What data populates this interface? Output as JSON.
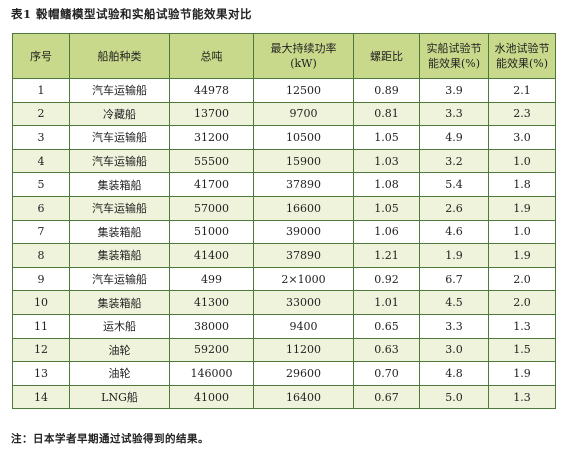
{
  "caption": "表1 毂帽鳍模型试验和实船试验节能效果对比",
  "columns": [
    "序号",
    "船舶种类",
    "总吨",
    "最大持续功率(kW)",
    "螺距比",
    "实船试验节能效果(%)",
    "水池试验节能效果(%)"
  ],
  "rows": [
    [
      "1",
      "汽车运输船",
      "44978",
      "12500",
      "0.89",
      "3.9",
      "2.1"
    ],
    [
      "2",
      "冷藏船",
      "13700",
      "9700",
      "0.81",
      "3.3",
      "2.3"
    ],
    [
      "3",
      "汽车运输船",
      "31200",
      "10500",
      "1.05",
      "4.9",
      "3.0"
    ],
    [
      "4",
      "汽车运输船",
      "55500",
      "15900",
      "1.03",
      "3.2",
      "1.0"
    ],
    [
      "5",
      "集装箱船",
      "41700",
      "37890",
      "1.08",
      "5.4",
      "1.8"
    ],
    [
      "6",
      "汽车运输船",
      "57000",
      "16600",
      "1.05",
      "2.6",
      "1.9"
    ],
    [
      "7",
      "集装箱船",
      "51000",
      "39000",
      "1.06",
      "4.6",
      "1.0"
    ],
    [
      "8",
      "集装箱船",
      "41400",
      "37890",
      "1.21",
      "1.9",
      "1.9"
    ],
    [
      "9",
      "汽车运输船",
      "499",
      "2×1000",
      "0.92",
      "6.7",
      "2.0"
    ],
    [
      "10",
      "集装箱船",
      "41300",
      "33000",
      "1.01",
      "4.5",
      "2.0"
    ],
    [
      "11",
      "运木船",
      "38000",
      "9400",
      "0.65",
      "3.3",
      "1.3"
    ],
    [
      "12",
      "油轮",
      "59200",
      "11200",
      "0.63",
      "3.0",
      "1.5"
    ],
    [
      "13",
      "油轮",
      "146000",
      "29600",
      "0.70",
      "4.8",
      "1.9"
    ],
    [
      "14",
      "LNG船",
      "41000",
      "16400",
      "0.67",
      "5.0",
      "1.3"
    ]
  ],
  "note": "注：日本学者早期通过试验得到的结果。",
  "colors": {
    "header_bg": "#c9d98b",
    "stripe_bg": "#f0f3dc",
    "border": "#4d7a3a"
  }
}
